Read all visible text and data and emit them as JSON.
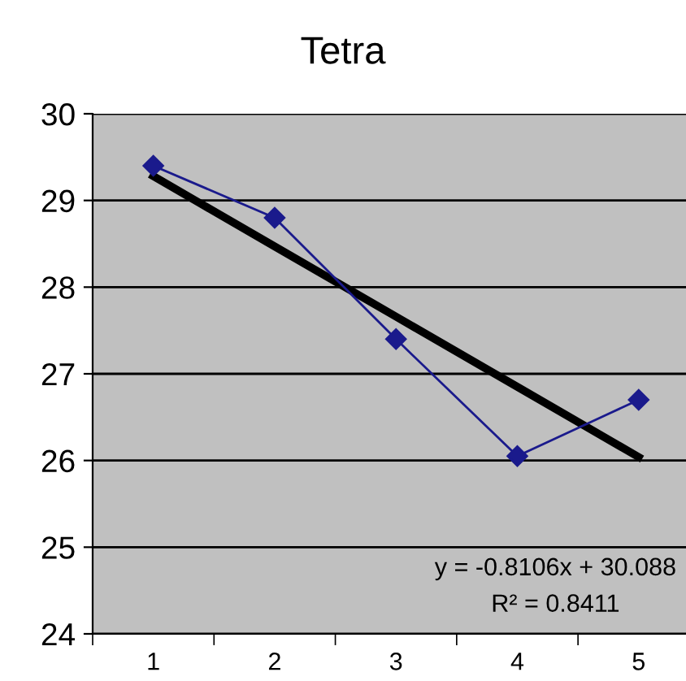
{
  "chart_data": {
    "type": "line",
    "title": "Tetra",
    "categories": [
      "1",
      "2",
      "3",
      "4",
      "5"
    ],
    "series": [
      {
        "color": "#1a1a8c",
        "values": [
          29.4,
          28.8,
          27.4,
          26.05,
          26.7
        ],
        "marker": "diamond"
      },
      {
        "color": "#000000",
        "values": [
          29.28,
          28.47,
          27.66,
          26.85,
          26.04
        ],
        "marker": "none"
      }
    ],
    "ylim": [
      24,
      30
    ],
    "yticks": [
      24,
      25,
      26,
      27,
      28,
      29,
      30
    ],
    "grid": "y",
    "annotations": [
      "y = -0.8106x + 30.088",
      "R² = 0.8411"
    ]
  }
}
